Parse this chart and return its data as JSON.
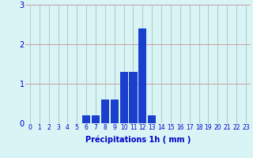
{
  "hours": [
    0,
    1,
    2,
    3,
    4,
    5,
    6,
    7,
    8,
    9,
    10,
    11,
    12,
    13,
    14,
    15,
    16,
    17,
    18,
    19,
    20,
    21,
    22,
    23
  ],
  "values": [
    0,
    0,
    0,
    0,
    0,
    0,
    0.2,
    0.2,
    0.6,
    0.6,
    1.3,
    1.3,
    2.4,
    0.2,
    0,
    0,
    0,
    0,
    0,
    0,
    0,
    0,
    0,
    0
  ],
  "bar_color": "#1a3fcc",
  "background_color": "#d8f4f4",
  "grid_color_h": "#c8a0a0",
  "grid_color_v": "#b0c8c8",
  "xlabel": "Précipitations 1h ( mm )",
  "xlabel_color": "#0000cc",
  "tick_color": "#0000cc",
  "ylim": [
    0,
    3
  ],
  "yticks": [
    0,
    1,
    2,
    3
  ],
  "xlim": [
    -0.5,
    23.5
  ],
  "xlabel_fontsize": 7,
  "tick_fontsize": 5.5,
  "ytick_fontsize": 7
}
